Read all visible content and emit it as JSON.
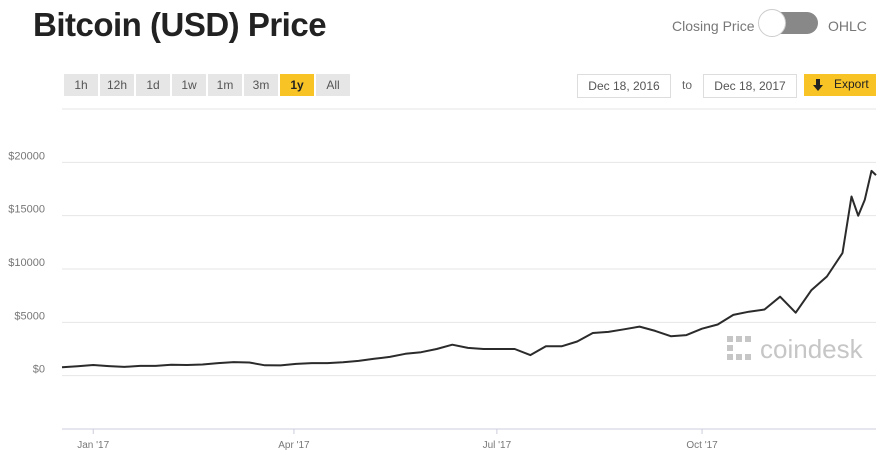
{
  "ui": {
    "title": "Bitcoin (USD) Price",
    "toggle_left": "Closing Price",
    "toggle_right": "OHLC",
    "ranges": [
      "1h",
      "12h",
      "1d",
      "1w",
      "1m",
      "3m",
      "1y",
      "All"
    ],
    "active_range": "1y",
    "date_from": "Dec 18, 2016",
    "date_sep": "to",
    "date_to": "Dec 18, 2017",
    "export": "Export",
    "watermark": "coindesk"
  },
  "chart_data": {
    "type": "line",
    "color": "#2b2b2b",
    "grid": true,
    "x": [
      "2016-12-18",
      "2016-12-25",
      "2017-01-01",
      "2017-01-08",
      "2017-01-15",
      "2017-01-22",
      "2017-01-29",
      "2017-02-05",
      "2017-02-12",
      "2017-02-19",
      "2017-02-26",
      "2017-03-05",
      "2017-03-12",
      "2017-03-19",
      "2017-03-26",
      "2017-04-02",
      "2017-04-09",
      "2017-04-16",
      "2017-04-23",
      "2017-04-30",
      "2017-05-07",
      "2017-05-14",
      "2017-05-21",
      "2017-05-28",
      "2017-06-04",
      "2017-06-11",
      "2017-06-18",
      "2017-06-25",
      "2017-07-02",
      "2017-07-09",
      "2017-07-16",
      "2017-07-23",
      "2017-07-30",
      "2017-08-06",
      "2017-08-13",
      "2017-08-20",
      "2017-08-27",
      "2017-09-03",
      "2017-09-10",
      "2017-09-17",
      "2017-09-24",
      "2017-10-01",
      "2017-10-08",
      "2017-10-15",
      "2017-10-22",
      "2017-10-29",
      "2017-11-05",
      "2017-11-12",
      "2017-11-19",
      "2017-11-26",
      "2017-12-03",
      "2017-12-07",
      "2017-12-10",
      "2017-12-13",
      "2017-12-16",
      "2017-12-18"
    ],
    "values": [
      790,
      890,
      1000,
      900,
      820,
      920,
      920,
      1030,
      1000,
      1050,
      1180,
      1270,
      1230,
      970,
      960,
      1100,
      1180,
      1180,
      1250,
      1380,
      1580,
      1760,
      2050,
      2200,
      2500,
      2900,
      2600,
      2500,
      2500,
      2500,
      1930,
      2750,
      2750,
      3200,
      4000,
      4100,
      4350,
      4600,
      4200,
      3700,
      3800,
      4400,
      4800,
      5700,
      6000,
      6200,
      7400,
      5900,
      8000,
      9300,
      11500,
      16800,
      15000,
      16500,
      19200,
      18800
    ],
    "xlim": [
      "2016-12-18",
      "2017-12-18"
    ],
    "xticks": [
      {
        "value": "2017-01-01",
        "label": "Jan '17"
      },
      {
        "value": "2017-04-01",
        "label": "Apr '17"
      },
      {
        "value": "2017-07-01",
        "label": "Jul '17"
      },
      {
        "value": "2017-10-01",
        "label": "Oct '17"
      }
    ],
    "ylim": [
      -5000,
      25000
    ],
    "yticks": [
      {
        "value": 0,
        "label": "$0"
      },
      {
        "value": 5000,
        "label": "$5000"
      },
      {
        "value": 10000,
        "label": "$10000"
      },
      {
        "value": 15000,
        "label": "$15000"
      },
      {
        "value": 20000,
        "label": "$20000"
      }
    ]
  }
}
